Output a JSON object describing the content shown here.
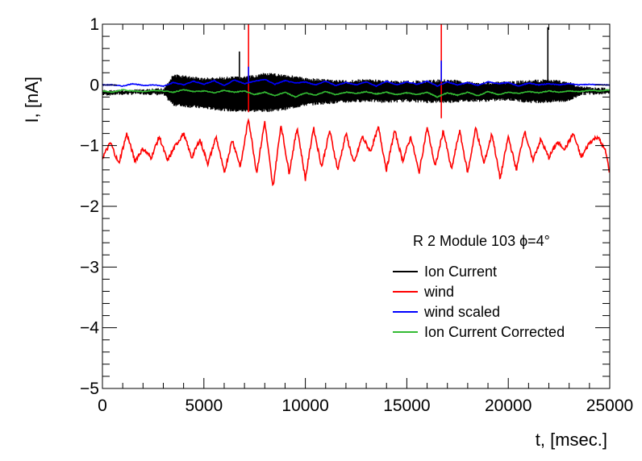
{
  "chart_data": {
    "type": "line",
    "title": "",
    "xlabel": "t, [msec.]",
    "ylabel": "I, [nA]",
    "xlim": [
      0,
      25000
    ],
    "ylim": [
      -5,
      1
    ],
    "x_ticks": [
      0,
      5000,
      10000,
      15000,
      20000,
      25000
    ],
    "x_tick_labels": [
      "0",
      "5000",
      "10000",
      "15000",
      "20000",
      "25000"
    ],
    "y_ticks": [
      -5,
      -4,
      -3,
      -2,
      -1,
      0,
      1
    ],
    "y_tick_labels": [
      "−5",
      "−4",
      "−3",
      "−2",
      "−1",
      "0",
      "1"
    ],
    "grid": false,
    "legend_position": "right",
    "annotation": "R 2 Module 103 ϕ=4°",
    "series": [
      {
        "name": "Ion Current",
        "color": "#000000",
        "style": "band",
        "x": [
          0,
          1000,
          2000,
          3000,
          3500,
          5000,
          6500,
          7200,
          8000,
          9000,
          10000,
          11000,
          12000,
          13000,
          14000,
          15000,
          16000,
          17000,
          18000,
          19000,
          20000,
          21000,
          22000,
          23000,
          23600,
          25000
        ],
        "y_upper": [
          -0.08,
          -0.08,
          -0.07,
          -0.05,
          0.18,
          0.12,
          0.14,
          0.15,
          0.2,
          0.18,
          0.12,
          0.1,
          0.08,
          0.1,
          0.08,
          0.07,
          0.08,
          0.1,
          0.06,
          0.05,
          0.06,
          0.08,
          0.1,
          0.06,
          -0.02,
          -0.05
        ],
        "y_lower": [
          -0.18,
          -0.17,
          -0.16,
          -0.18,
          -0.35,
          -0.4,
          -0.45,
          -0.45,
          -0.45,
          -0.42,
          -0.35,
          -0.32,
          -0.3,
          -0.28,
          -0.3,
          -0.28,
          -0.3,
          -0.3,
          -0.28,
          -0.28,
          -0.26,
          -0.3,
          -0.3,
          -0.28,
          -0.17,
          -0.15
        ],
        "spikes": [
          {
            "x": 6750,
            "y": 0.55
          },
          {
            "x": 21950,
            "y": 0.95
          }
        ]
      },
      {
        "name": "wind",
        "color": "#ff0000",
        "style": "line",
        "x": [
          0,
          400,
          800,
          1200,
          1600,
          2000,
          2400,
          2800,
          3200,
          3600,
          4000,
          4400,
          4800,
          5200,
          5600,
          6000,
          6400,
          6800,
          7200,
          7600,
          8000,
          8400,
          8800,
          9200,
          9600,
          10000,
          10400,
          10800,
          11200,
          11600,
          12000,
          12400,
          12800,
          13200,
          13600,
          14000,
          14400,
          14800,
          15200,
          15600,
          16000,
          16400,
          16800,
          17200,
          17600,
          18000,
          18400,
          18800,
          19200,
          19600,
          20000,
          20400,
          20800,
          21200,
          21600,
          22000,
          22400,
          22800,
          23200,
          23600,
          24000,
          24400,
          24800,
          25000
        ],
        "y": [
          -1.2,
          -0.95,
          -1.3,
          -0.8,
          -1.25,
          -1.05,
          -1.2,
          -0.85,
          -1.25,
          -1.0,
          -0.8,
          -1.2,
          -0.9,
          -1.3,
          -0.85,
          -1.45,
          -0.9,
          -1.35,
          -0.55,
          -1.45,
          -0.6,
          -1.7,
          -0.65,
          -1.45,
          -0.7,
          -1.55,
          -0.7,
          -1.35,
          -0.75,
          -1.4,
          -0.8,
          -1.3,
          -0.85,
          -1.1,
          -0.7,
          -1.4,
          -0.75,
          -1.25,
          -0.85,
          -1.45,
          -0.7,
          -1.35,
          -0.75,
          -1.4,
          -0.75,
          -1.45,
          -0.7,
          -1.3,
          -0.8,
          -1.55,
          -0.85,
          -1.4,
          -0.75,
          -1.25,
          -0.9,
          -1.2,
          -0.95,
          -1.05,
          -0.8,
          -1.2,
          -0.95,
          -0.85,
          -1.1,
          -1.45
        ],
        "spikes": [
          {
            "x": 7200,
            "y_from": -0.45,
            "y_to": 1.0
          },
          {
            "x": 16700,
            "y_from": -0.55,
            "y_to": 1.0
          }
        ]
      },
      {
        "name": "wind scaled",
        "color": "#0000ff",
        "style": "line",
        "x": [
          0,
          500,
          1000,
          1500,
          2000,
          2500,
          3000,
          3500,
          4000,
          4500,
          5000,
          5500,
          6000,
          6500,
          7000,
          7500,
          8000,
          8500,
          9000,
          9500,
          10000,
          10500,
          11000,
          11500,
          12000,
          12500,
          13000,
          13500,
          14000,
          14500,
          15000,
          15500,
          16000,
          16500,
          17000,
          17500,
          18000,
          18500,
          19000,
          19500,
          20000,
          20500,
          21000,
          21500,
          22000,
          22500,
          23000,
          23500,
          24000,
          24500,
          25000
        ],
        "y": [
          0.0,
          0.0,
          -0.02,
          0.02,
          -0.01,
          0.0,
          -0.02,
          0.04,
          0.0,
          0.06,
          0.01,
          0.07,
          -0.01,
          0.08,
          0.02,
          0.06,
          0.09,
          0.01,
          0.07,
          0.03,
          0.05,
          0.0,
          0.06,
          -0.01,
          0.04,
          0.0,
          0.05,
          -0.02,
          0.06,
          0.0,
          0.05,
          0.01,
          0.06,
          -0.02,
          0.05,
          0.0,
          0.04,
          -0.01,
          0.05,
          0.02,
          0.04,
          -0.02,
          0.03,
          0.0,
          0.02,
          0.0,
          0.02,
          0.0,
          0.01,
          0.0,
          0.0
        ],
        "spikes": [
          {
            "x": 7200,
            "y_from": 0.05,
            "y_to": 0.3
          },
          {
            "x": 16700,
            "y_from": 0.05,
            "y_to": 0.4
          }
        ]
      },
      {
        "name": "Ion Current Corrected",
        "color": "#33bb33",
        "style": "line",
        "x": [
          0,
          500,
          1000,
          1500,
          2000,
          2500,
          3000,
          3500,
          4000,
          4500,
          5000,
          5500,
          6000,
          6500,
          7000,
          7500,
          8000,
          8500,
          9000,
          9500,
          10000,
          10500,
          11000,
          11500,
          12000,
          12500,
          13000,
          13500,
          14000,
          14500,
          15000,
          15500,
          16000,
          16500,
          17000,
          17500,
          18000,
          18500,
          19000,
          19500,
          20000,
          20500,
          21000,
          21500,
          22000,
          22500,
          23000,
          23500,
          24000,
          24500,
          25000
        ],
        "y": [
          -0.1,
          -0.12,
          -0.08,
          -0.1,
          -0.11,
          -0.09,
          -0.1,
          -0.12,
          -0.08,
          -0.11,
          -0.1,
          -0.13,
          -0.09,
          -0.12,
          -0.1,
          -0.16,
          -0.12,
          -0.18,
          -0.12,
          -0.2,
          -0.13,
          -0.17,
          -0.11,
          -0.16,
          -0.12,
          -0.14,
          -0.11,
          -0.15,
          -0.12,
          -0.16,
          -0.13,
          -0.16,
          -0.12,
          -0.2,
          -0.13,
          -0.17,
          -0.12,
          -0.18,
          -0.11,
          -0.16,
          -0.12,
          -0.14,
          -0.11,
          -0.13,
          -0.1,
          -0.12,
          -0.1,
          -0.11,
          -0.09,
          -0.1,
          -0.08
        ]
      }
    ]
  }
}
